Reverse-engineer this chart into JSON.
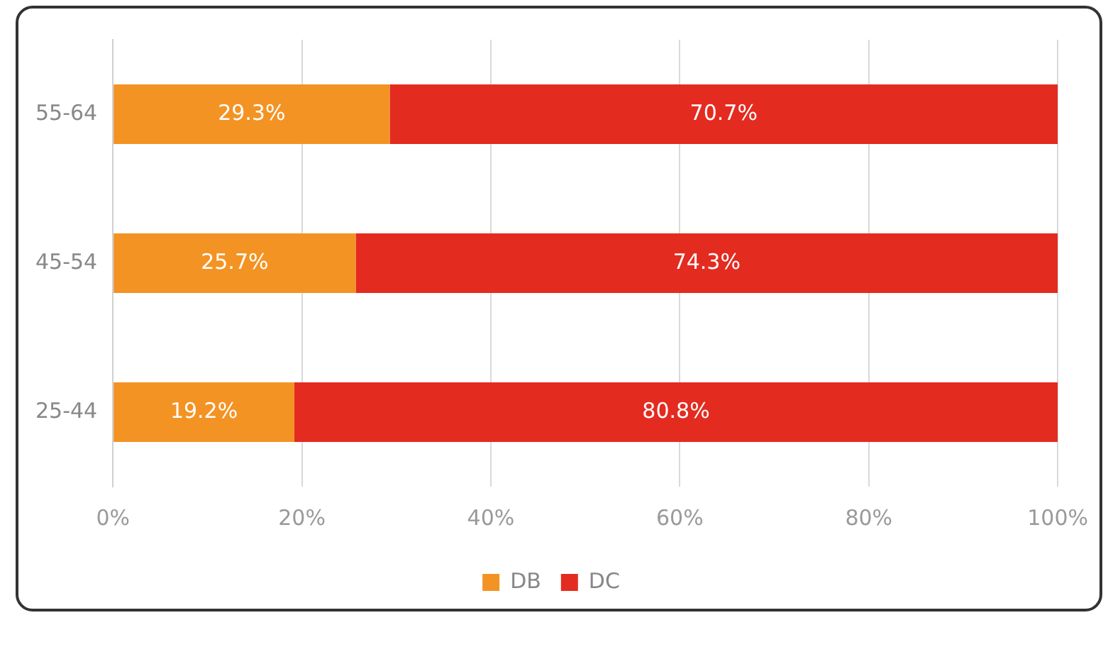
{
  "chart_data": {
    "type": "bar",
    "orientation": "horizontal",
    "stacked": true,
    "categories": [
      "55-64",
      "45-54",
      "25-44"
    ],
    "series": [
      {
        "name": "DB",
        "color": "#f39323",
        "values": [
          29.3,
          25.7,
          19.2
        ],
        "value_labels": [
          "29.3%",
          "25.7%",
          "19.2%"
        ]
      },
      {
        "name": "DC",
        "color": "#e42b20",
        "values": [
          70.7,
          74.3,
          80.8
        ],
        "value_labels": [
          "70.7%",
          "74.3%",
          "80.8%"
        ]
      }
    ],
    "xlim": [
      0,
      100
    ],
    "xticks": [
      {
        "value": 0,
        "label": "0%"
      },
      {
        "value": 20,
        "label": "20%"
      },
      {
        "value": 40,
        "label": "40%"
      },
      {
        "value": 60,
        "label": "60%"
      },
      {
        "value": 80,
        "label": "80%"
      },
      {
        "value": 100,
        "label": "100%"
      }
    ],
    "grid": "x",
    "legend": "bottom"
  }
}
